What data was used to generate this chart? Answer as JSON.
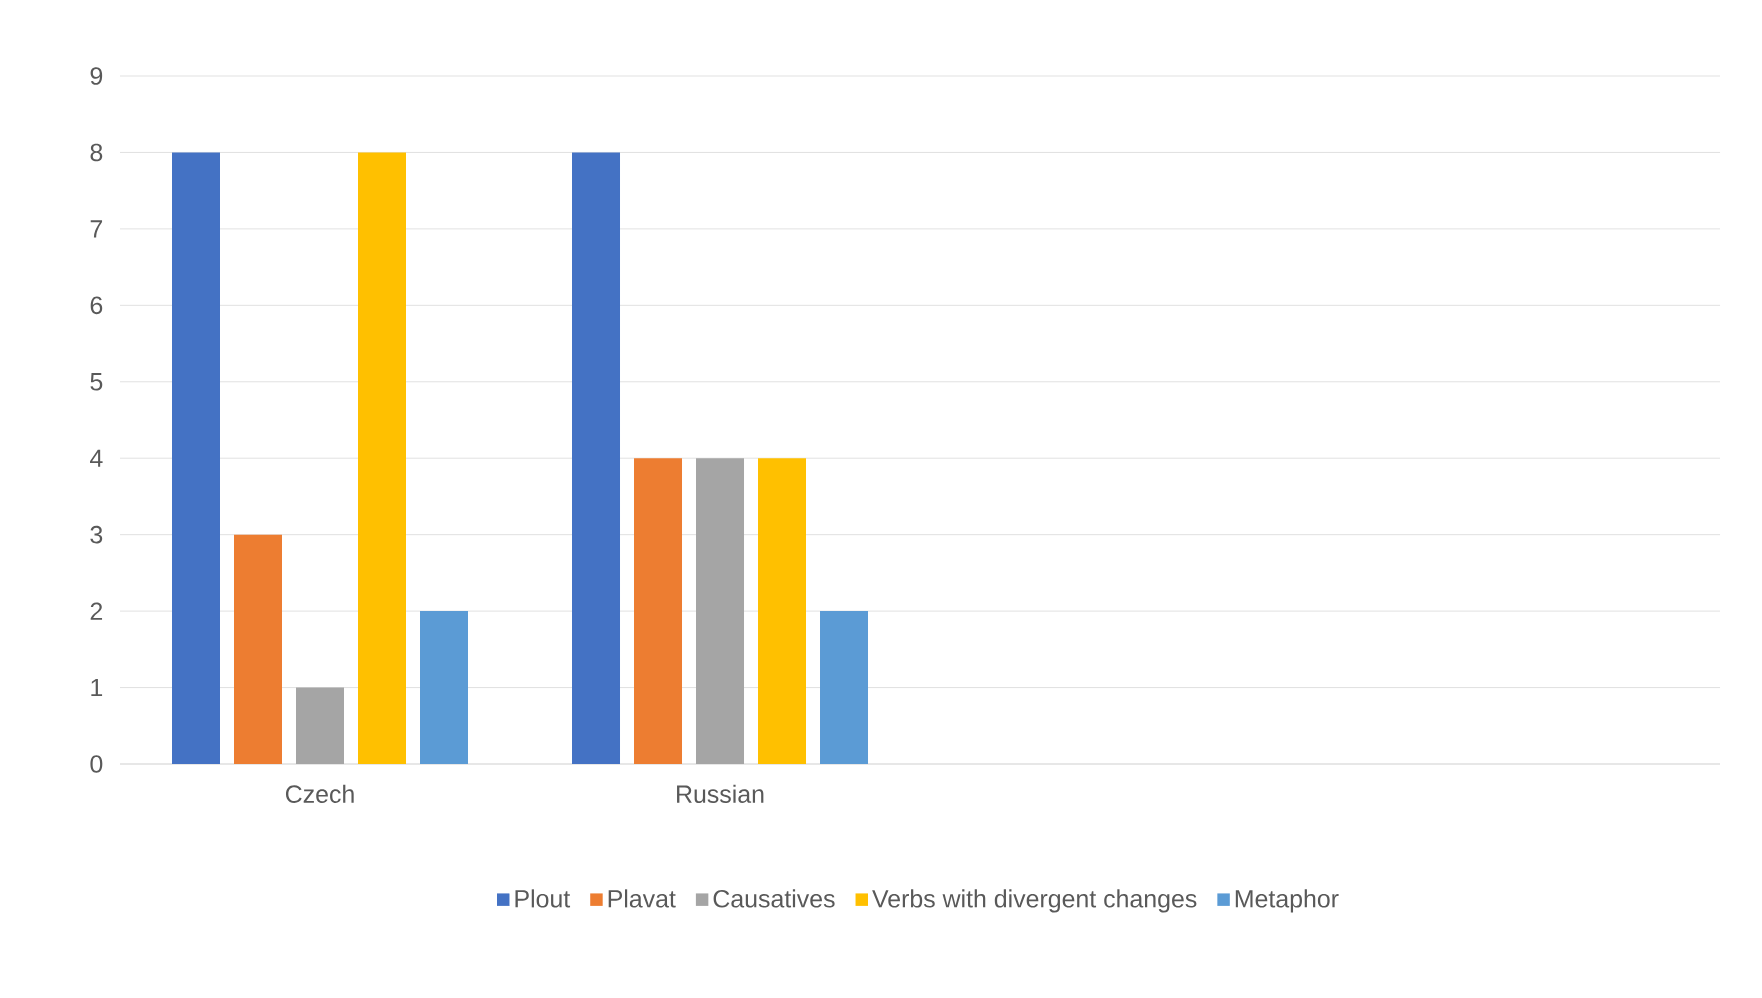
{
  "chart_data": {
    "type": "bar",
    "categories": [
      "Czech",
      "Russian",
      null,
      null
    ],
    "series": [
      {
        "name": "Plout",
        "color": "#4472c4",
        "values": [
          8,
          8,
          null,
          null
        ]
      },
      {
        "name": "Plavat",
        "color": "#ed7d31",
        "values": [
          3,
          4,
          null,
          null
        ]
      },
      {
        "name": "Causatives",
        "color": "#a5a5a5",
        "values": [
          1,
          4,
          null,
          null
        ]
      },
      {
        "name": "Verbs with divergent changes",
        "color": "#ffc000",
        "values": [
          8,
          4,
          null,
          null
        ]
      },
      {
        "name": "Metaphor",
        "color": "#5b9bd5",
        "values": [
          2,
          2,
          null,
          null
        ]
      }
    ],
    "ylim": [
      0,
      9
    ],
    "yticks": [
      0,
      1,
      2,
      3,
      4,
      5,
      6,
      7,
      8,
      9
    ],
    "grid": "y",
    "legend": "bottom"
  }
}
